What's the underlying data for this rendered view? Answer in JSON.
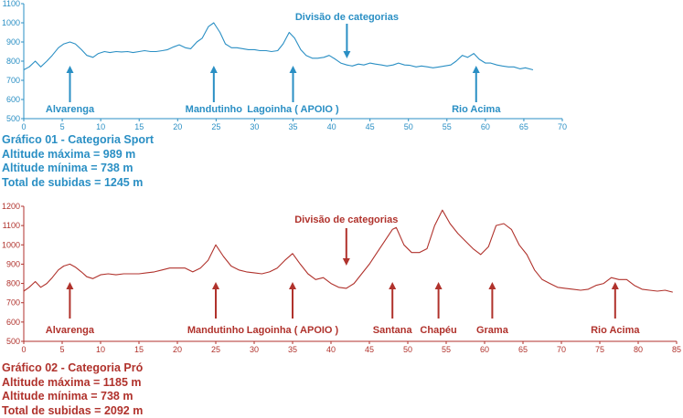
{
  "chart_data": [
    {
      "type": "line",
      "color": "#2a8fc4",
      "xlim": [
        0,
        70
      ],
      "ylim": [
        500,
        1100
      ],
      "x_ticks": [
        0,
        5,
        10,
        15,
        20,
        25,
        30,
        35,
        40,
        45,
        50,
        55,
        60,
        65,
        70
      ],
      "y_ticks": [
        500,
        600,
        700,
        800,
        900,
        1000,
        1100
      ],
      "series": [
        {
          "x": [
            0,
            0.7,
            1.5,
            2.2,
            3,
            3.7,
            4.5,
            5.2,
            6,
            6.7,
            7.5,
            8.2,
            9,
            9.7,
            10.5,
            11.2,
            12,
            12.7,
            13.5,
            14.2,
            15,
            15.7,
            16.5,
            17.2,
            18,
            18.7,
            19.5,
            20.2,
            21,
            21.7,
            22.5,
            23.2,
            24,
            24.7,
            25.5,
            26.2,
            27,
            27.7,
            28.5,
            29.2,
            30,
            30.7,
            31.5,
            32.2,
            33,
            33.7,
            34.5,
            35.2,
            36,
            36.7,
            37.5,
            38.2,
            39,
            39.7,
            40.5,
            41.2,
            42,
            42.7,
            43.5,
            44.2,
            45,
            45.7,
            46.5,
            47.2,
            48,
            48.7,
            49.5,
            50.2,
            51,
            51.7,
            52.5,
            53.2,
            54,
            54.7,
            55.5,
            56.2,
            57,
            57.7,
            58.5,
            59.2,
            60,
            60.7,
            61.5,
            62.2,
            63,
            63.7,
            64.5,
            65.2,
            66.2
          ],
          "y": [
            755,
            770,
            800,
            770,
            800,
            830,
            870,
            890,
            900,
            890,
            860,
            830,
            820,
            840,
            850,
            845,
            850,
            848,
            850,
            845,
            850,
            855,
            850,
            850,
            855,
            860,
            875,
            885,
            870,
            865,
            900,
            920,
            980,
            1000,
            950,
            890,
            870,
            870,
            865,
            860,
            860,
            855,
            855,
            850,
            855,
            890,
            950,
            920,
            860,
            830,
            815,
            815,
            820,
            830,
            810,
            790,
            780,
            775,
            785,
            780,
            790,
            785,
            780,
            775,
            780,
            790,
            780,
            778,
            770,
            775,
            770,
            765,
            770,
            775,
            780,
            800,
            830,
            820,
            840,
            810,
            790,
            790,
            780,
            775,
            770,
            770,
            760,
            765,
            755
          ]
        }
      ],
      "annotations": [
        {
          "x": 6,
          "label": "Alvarenga"
        },
        {
          "x": 24.7,
          "label": "Mandutinho"
        },
        {
          "x": 35,
          "label": "Lagoinha ( APOIO )"
        },
        {
          "x": 42,
          "label": "Divisão de categorias",
          "position": "top"
        },
        {
          "x": 58.8,
          "label": "Rio  Acima"
        }
      ],
      "stats": [
        "Gráfico 01 -  Categoria Sport",
        "Altitude máxima = 989 m",
        "Altitude mínima = 738 m",
        "Total de subidas = 1245 m"
      ]
    },
    {
      "type": "line",
      "color": "#b0322c",
      "xlim": [
        0,
        85
      ],
      "ylim": [
        500,
        1200
      ],
      "x_ticks": [
        0,
        5,
        10,
        15,
        20,
        25,
        30,
        35,
        40,
        45,
        50,
        55,
        60,
        65,
        70,
        75,
        80,
        85
      ],
      "y_ticks": [
        500,
        600,
        700,
        800,
        900,
        1000,
        1100,
        1200
      ],
      "series": [
        {
          "x": [
            0,
            0.7,
            1.5,
            2.2,
            3,
            3.7,
            4.5,
            5.2,
            6,
            6.7,
            7.5,
            8.2,
            9,
            10,
            11,
            12,
            13,
            14,
            15,
            16,
            17,
            18,
            19,
            20,
            21,
            22,
            23,
            24,
            25,
            26,
            27,
            28,
            29,
            30,
            31,
            32,
            33,
            34,
            35,
            36,
            37,
            38,
            39,
            40,
            41,
            42,
            43,
            44,
            45,
            46,
            47,
            48,
            48.5,
            49.5,
            50.5,
            51.5,
            52.5,
            53.5,
            54.5,
            55.5,
            56.5,
            57.5,
            58.5,
            59.5,
            60.5,
            61.5,
            62.5,
            63.5,
            64.5,
            65.5,
            66.5,
            67.5,
            68.5,
            69.5,
            70.5,
            71.5,
            72.5,
            73.5,
            74.5,
            75.5,
            76.5,
            77.5,
            78.5,
            79.5,
            80.5,
            81.5,
            82.5,
            83.5,
            84.5
          ],
          "y": [
            760,
            780,
            810,
            780,
            800,
            830,
            870,
            890,
            900,
            885,
            860,
            835,
            825,
            845,
            850,
            845,
            850,
            850,
            850,
            855,
            860,
            870,
            880,
            880,
            880,
            860,
            880,
            920,
            1000,
            940,
            890,
            870,
            860,
            855,
            850,
            860,
            880,
            920,
            955,
            900,
            850,
            820,
            830,
            800,
            780,
            775,
            800,
            850,
            900,
            960,
            1020,
            1080,
            1090,
            1000,
            960,
            960,
            980,
            1100,
            1180,
            1110,
            1060,
            1020,
            980,
            950,
            990,
            1100,
            1110,
            1080,
            1000,
            950,
            870,
            820,
            800,
            780,
            775,
            770,
            765,
            770,
            790,
            800,
            830,
            820,
            820,
            790,
            770,
            765,
            760,
            765,
            755
          ]
        }
      ],
      "annotations": [
        {
          "x": 6,
          "label": "Alvarenga"
        },
        {
          "x": 25,
          "label": "Mandutinho"
        },
        {
          "x": 35,
          "label": "Lagoinha ( APOIO )"
        },
        {
          "x": 42,
          "label": "Divisão de categorias",
          "position": "top"
        },
        {
          "x": 48,
          "label": "Santana"
        },
        {
          "x": 54,
          "label": "Chapéu"
        },
        {
          "x": 61,
          "label": "Grama"
        },
        {
          "x": 77,
          "label": "Rio  Acima"
        }
      ],
      "stats": [
        "Gráfico 02 - Categoria Pró",
        "Altitude máxima = 1185 m",
        "Altitude mínima = 738 m",
        "Total de subidas = 2092 m"
      ]
    }
  ]
}
